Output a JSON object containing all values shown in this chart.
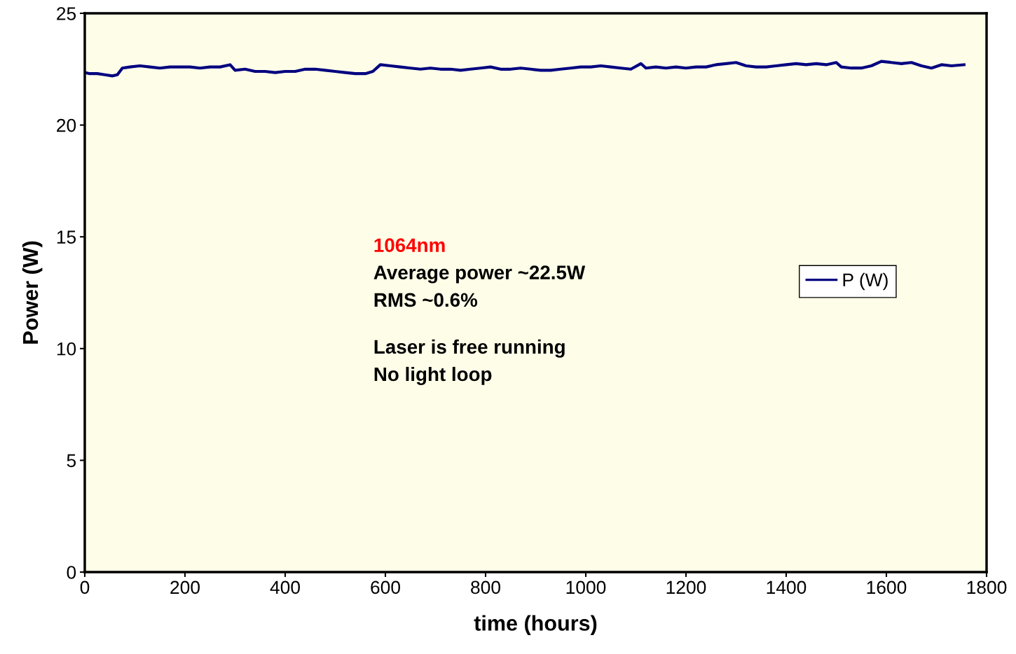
{
  "chart_data": {
    "type": "line",
    "xlabel": "time (hours)",
    "ylabel": "Power (W)",
    "x": [
      0,
      10,
      25,
      40,
      55,
      65,
      75,
      90,
      110,
      130,
      150,
      170,
      190,
      210,
      230,
      250,
      270,
      290,
      300,
      320,
      340,
      360,
      380,
      400,
      420,
      440,
      460,
      480,
      500,
      520,
      540,
      560,
      575,
      590,
      610,
      630,
      650,
      670,
      690,
      710,
      730,
      750,
      770,
      790,
      810,
      830,
      850,
      870,
      890,
      910,
      930,
      950,
      970,
      990,
      1010,
      1030,
      1050,
      1070,
      1090,
      1110,
      1120,
      1140,
      1160,
      1180,
      1200,
      1220,
      1240,
      1260,
      1280,
      1300,
      1320,
      1340,
      1360,
      1380,
      1400,
      1420,
      1440,
      1460,
      1480,
      1500,
      1510,
      1530,
      1550,
      1570,
      1590,
      1610,
      1630,
      1650,
      1670,
      1690,
      1710,
      1730,
      1755
    ],
    "series": [
      {
        "name": "P (W)",
        "color": "#000080",
        "values": [
          22.35,
          22.3,
          22.3,
          22.25,
          22.2,
          22.25,
          22.55,
          22.6,
          22.65,
          22.6,
          22.55,
          22.6,
          22.6,
          22.6,
          22.55,
          22.6,
          22.6,
          22.7,
          22.45,
          22.5,
          22.4,
          22.4,
          22.35,
          22.4,
          22.4,
          22.5,
          22.5,
          22.45,
          22.4,
          22.35,
          22.3,
          22.3,
          22.4,
          22.7,
          22.65,
          22.6,
          22.55,
          22.5,
          22.55,
          22.5,
          22.5,
          22.45,
          22.5,
          22.55,
          22.6,
          22.5,
          22.5,
          22.55,
          22.5,
          22.45,
          22.45,
          22.5,
          22.55,
          22.6,
          22.6,
          22.65,
          22.6,
          22.55,
          22.5,
          22.75,
          22.55,
          22.6,
          22.55,
          22.6,
          22.55,
          22.6,
          22.6,
          22.7,
          22.75,
          22.8,
          22.65,
          22.6,
          22.6,
          22.65,
          22.7,
          22.75,
          22.7,
          22.75,
          22.7,
          22.8,
          22.6,
          22.55,
          22.55,
          22.65,
          22.85,
          22.8,
          22.75,
          22.8,
          22.65,
          22.55,
          22.7,
          22.65,
          22.7
        ]
      }
    ],
    "xlim": [
      0,
      1800
    ],
    "xticks": [
      0,
      200,
      400,
      600,
      800,
      1000,
      1200,
      1400,
      1600,
      1800
    ],
    "ylim": [
      0,
      25
    ],
    "yticks": [
      0,
      5,
      10,
      15,
      20,
      25
    ],
    "annotations": [
      "1064nm",
      "Average power ~22.5W",
      "RMS ~0.6%",
      "Laser is free running",
      "No light loop"
    ],
    "legend": "right",
    "grid": false,
    "marker": "none",
    "line_style": "solid"
  }
}
